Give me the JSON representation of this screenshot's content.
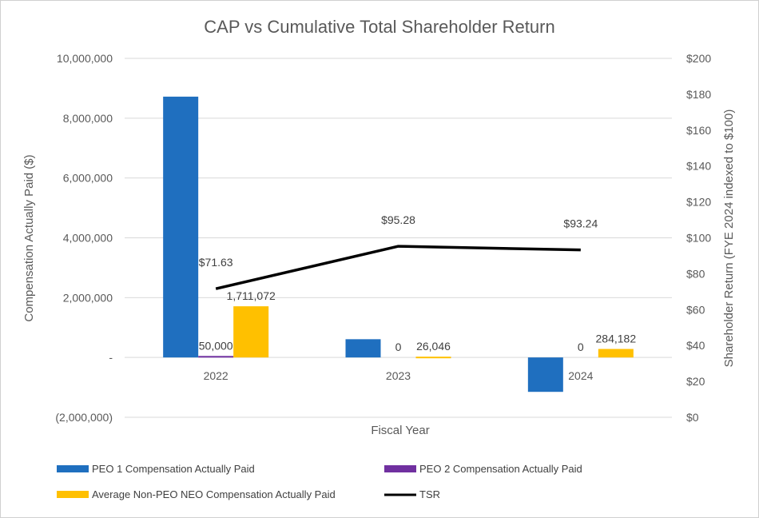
{
  "chart_data": {
    "type": "bar",
    "title": "CAP vs Cumulative Total Shareholder Return",
    "xlabel": "Fiscal Year",
    "ylabel": "Compensation Actually Paid ($)",
    "y2label": "Shareholder Return (FYE 2024 indexed to $100)",
    "categories": [
      "2022",
      "2023",
      "2024"
    ],
    "ylim": [
      -2000000,
      10000000
    ],
    "y2lim": [
      0,
      200
    ],
    "y_ticks": [
      -2000000,
      0,
      2000000,
      4000000,
      6000000,
      8000000,
      10000000
    ],
    "y_tick_labels": [
      "(2,000,000)",
      "-",
      "2,000,000",
      "4,000,000",
      "6,000,000",
      "8,000,000",
      "10,000,000"
    ],
    "y2_ticks": [
      0,
      20,
      40,
      60,
      80,
      100,
      120,
      140,
      160,
      180,
      200
    ],
    "y2_tick_labels": [
      "$0",
      "$20",
      "$40",
      "$60",
      "$80",
      "$100",
      "$120",
      "$140",
      "$160",
      "$180",
      "$200"
    ],
    "grid": true,
    "legend_position": "bottom",
    "series": [
      {
        "name": "PEO 1 Compensation Actually Paid",
        "type": "bar",
        "color": "#1f6fbf",
        "values": [
          8720000,
          610000,
          -1150000
        ],
        "labels": [
          "",
          "",
          ""
        ]
      },
      {
        "name": "PEO 2 Compensation Actually Paid",
        "type": "bar",
        "color": "#7030a0",
        "values": [
          50000,
          0,
          0
        ],
        "labels": [
          "50,000",
          "0",
          "0"
        ]
      },
      {
        "name": "Average Non-PEO NEO Compensation Actually Paid",
        "type": "bar",
        "color": "#ffc000",
        "values": [
          1711072,
          26046,
          284182
        ],
        "labels": [
          "1,711,072",
          "26,046",
          "284,182"
        ]
      },
      {
        "name": "TSR",
        "type": "line",
        "axis": "secondary",
        "color": "#000000",
        "values": [
          71.63,
          95.28,
          93.24
        ],
        "labels": [
          "$71.63",
          "$95.28",
          "$93.24"
        ]
      }
    ]
  }
}
